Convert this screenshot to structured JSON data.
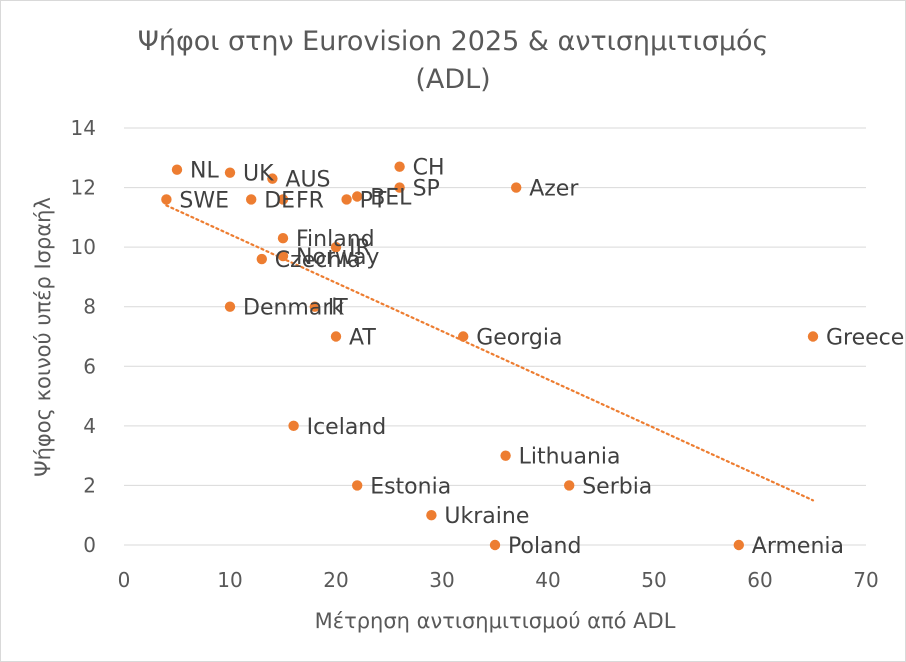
{
  "chart_data": {
    "type": "scatter",
    "title": "Ψήφοι στην Eurovision 2025 & αντισημιτισμός (ADL)",
    "title_lines": [
      "Ψήφοι στην Eurovision 2025 & αντισημιτισμός",
      "(ADL)"
    ],
    "xlabel": "Μέτρηση αντισημιτισμού από ADL",
    "ylabel": "Ψήφος κοινού υπέρ Ισραήλ",
    "xlim": [
      0,
      70
    ],
    "ylim": [
      0,
      14
    ],
    "xticks": [
      0,
      10,
      20,
      30,
      40,
      50,
      60,
      70
    ],
    "yticks": [
      0,
      2,
      4,
      6,
      8,
      10,
      12,
      14
    ],
    "grid": "horizontal",
    "marker_color": "#ED7D31",
    "trendline": {
      "type": "linear",
      "color": "#ED7D31",
      "style": "dotted",
      "x": [
        4,
        65
      ],
      "y": [
        11.4,
        1.5
      ]
    },
    "points": [
      {
        "label": "NL",
        "x": 5,
        "y": 12.6
      },
      {
        "label": "UK",
        "x": 10,
        "y": 12.5
      },
      {
        "label": "AUS",
        "x": 14,
        "y": 12.3
      },
      {
        "label": "SWE",
        "x": 4,
        "y": 11.6
      },
      {
        "label": "DE",
        "x": 12,
        "y": 11.6
      },
      {
        "label": "FR",
        "x": 15,
        "y": 11.6
      },
      {
        "label": "PT",
        "x": 21,
        "y": 11.6
      },
      {
        "label": "BEL",
        "x": 22,
        "y": 11.7
      },
      {
        "label": "CH",
        "x": 26,
        "y": 12.7
      },
      {
        "label": "SP",
        "x": 26,
        "y": 12.0
      },
      {
        "label": "Azer",
        "x": 37,
        "y": 12.0
      },
      {
        "label": "Finland",
        "x": 15,
        "y": 10.3
      },
      {
        "label": "Norway",
        "x": 15,
        "y": 9.7
      },
      {
        "label": "Czechia",
        "x": 13,
        "y": 9.6
      },
      {
        "label": "IR",
        "x": 20,
        "y": 10.0
      },
      {
        "label": "Denmark",
        "x": 10,
        "y": 8.0
      },
      {
        "label": "IT",
        "x": 18,
        "y": 8.0
      },
      {
        "label": "AT",
        "x": 20,
        "y": 7.0
      },
      {
        "label": "Georgia",
        "x": 32,
        "y": 7.0
      },
      {
        "label": "Greece",
        "x": 65,
        "y": 7.0
      },
      {
        "label": "Iceland",
        "x": 16,
        "y": 4.0
      },
      {
        "label": "Lithuania",
        "x": 36,
        "y": 3.0
      },
      {
        "label": "Estonia",
        "x": 22,
        "y": 2.0
      },
      {
        "label": "Serbia",
        "x": 42,
        "y": 2.0
      },
      {
        "label": "Ukraine",
        "x": 29,
        "y": 1.0
      },
      {
        "label": "Poland",
        "x": 35,
        "y": 0.0
      },
      {
        "label": "Armenia",
        "x": 58,
        "y": 0.0
      }
    ]
  }
}
